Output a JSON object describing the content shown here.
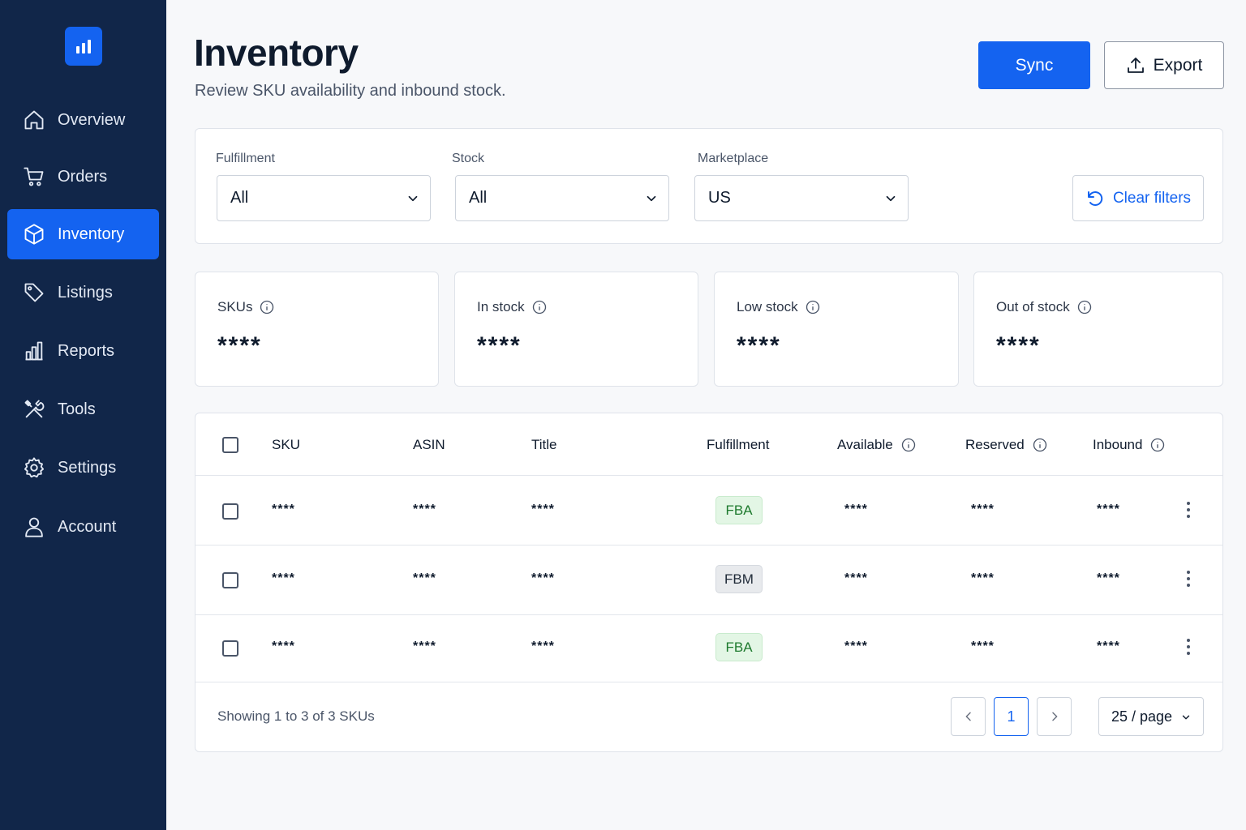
{
  "sidebar": {
    "items": [
      {
        "label": "Overview",
        "icon": "home-icon"
      },
      {
        "label": "Orders",
        "icon": "cart-icon"
      },
      {
        "label": "Inventory",
        "icon": "box-icon",
        "active": true
      },
      {
        "label": "Listings",
        "icon": "tag-icon"
      },
      {
        "label": "Reports",
        "icon": "bar-chart-icon"
      },
      {
        "label": "Tools",
        "icon": "tools-icon"
      },
      {
        "label": "Settings",
        "icon": "gear-icon"
      },
      {
        "label": "Account",
        "icon": "user-icon"
      }
    ]
  },
  "header": {
    "title": "Inventory",
    "subtitle": "Review SKU availability and inbound stock.",
    "sync_label": "Sync",
    "export_label": "Export"
  },
  "filters": {
    "fulfillment": {
      "label": "Fulfillment",
      "value": "All"
    },
    "stock": {
      "label": "Stock",
      "value": "All"
    },
    "marketplace": {
      "label": "Marketplace",
      "value": "US"
    },
    "clear_label": "Clear filters"
  },
  "stats": [
    {
      "label": "SKUs",
      "value": "****"
    },
    {
      "label": "In stock",
      "value": "****"
    },
    {
      "label": "Low stock",
      "value": "****"
    },
    {
      "label": "Out of stock",
      "value": "****"
    }
  ],
  "table": {
    "columns": [
      "SKU",
      "ASIN",
      "Title",
      "Fulfillment",
      "Available",
      "Reserved",
      "Inbound"
    ],
    "rows": [
      {
        "sku": "****",
        "asin": "****",
        "title": "****",
        "fulfillment": "FBA",
        "available": "****",
        "reserved": "****",
        "inbound": "****"
      },
      {
        "sku": "****",
        "asin": "****",
        "title": "****",
        "fulfillment": "FBM",
        "available": "****",
        "reserved": "****",
        "inbound": "****"
      },
      {
        "sku": "****",
        "asin": "****",
        "title": "****",
        "fulfillment": "FBA",
        "available": "****",
        "reserved": "****",
        "inbound": "****"
      }
    ],
    "showing_text": "Showing 1 to 3 of 3 SKUs",
    "current_page": "1",
    "per_page": "25 / page"
  },
  "colors": {
    "sidebar_bg": "#112649",
    "accent": "#1463f0",
    "fba_badge": "#e3f6e5",
    "fbm_badge": "#e8eaed"
  }
}
